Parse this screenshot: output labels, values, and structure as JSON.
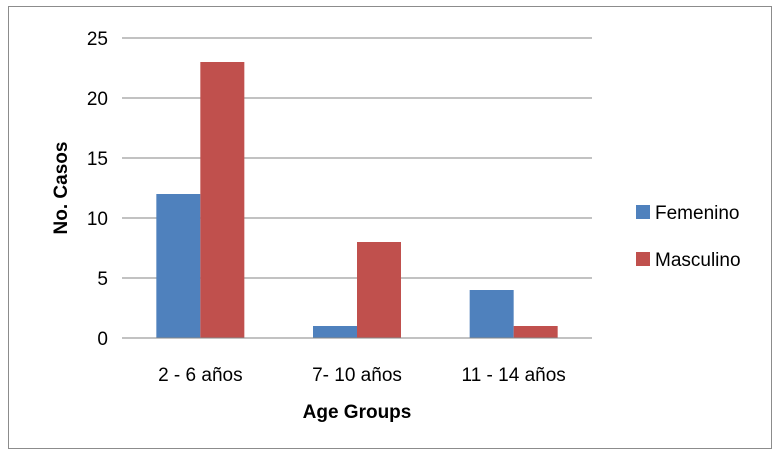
{
  "chart_data": {
    "type": "bar",
    "categories": [
      "2 - 6 años",
      "7- 10 años",
      "11 - 14 años"
    ],
    "series": [
      {
        "name": "Femenino",
        "values": [
          12,
          1,
          4
        ],
        "color": "#4f81bd"
      },
      {
        "name": "Masculino",
        "values": [
          23,
          8,
          1
        ],
        "color": "#c0504d"
      }
    ],
    "xlabel": "Age Groups",
    "ylabel": "No. Casos",
    "ylim": [
      0,
      25
    ],
    "yticks": [
      0,
      5,
      10,
      15,
      20,
      25
    ],
    "grid": true,
    "legend_position": "right"
  }
}
